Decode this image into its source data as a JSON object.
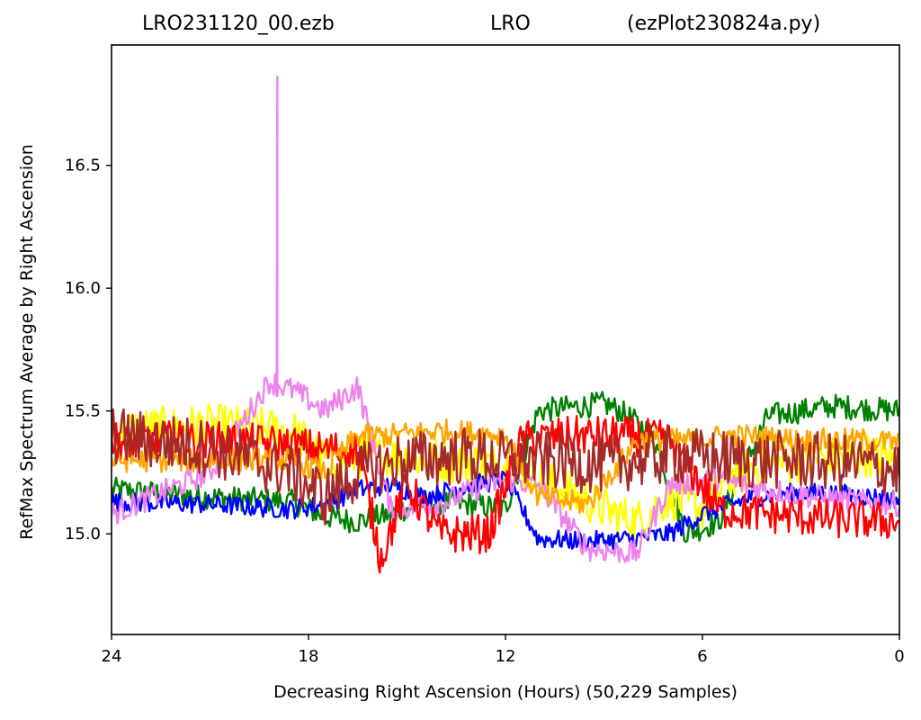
{
  "title": {
    "left": "LRO231120_00.ezb",
    "center": "LRO",
    "right": "(ezPlot230824a.py)"
  },
  "chart_data": {
    "type": "line",
    "xlabel": "Decreasing Right Ascension (Hours) (50,229 Samples)",
    "ylabel": "RefMax Spectrum Average by Right Ascension",
    "xlim": [
      24,
      0
    ],
    "ylim": [
      14.59,
      16.99
    ],
    "x_ticks": [
      "24",
      "18",
      "12",
      "6",
      "0"
    ],
    "y_ticks": [
      "15.0",
      "15.5",
      "16.0",
      "16.5"
    ],
    "grid": false,
    "legend": "none",
    "series": [
      {
        "color": "#008000",
        "x": [
          24,
          21,
          18.5,
          17.5,
          16.5,
          15.5,
          14.5,
          13.0,
          12.0,
          11.0,
          9.0,
          8.5,
          7.5,
          6.5,
          5.5,
          4.0,
          2.0,
          0
        ],
        "values": [
          15.18,
          15.15,
          15.13,
          15.07,
          15.05,
          15.08,
          15.13,
          15.12,
          15.1,
          15.5,
          15.53,
          15.5,
          15.4,
          15.0,
          15.05,
          15.48,
          15.52,
          15.5
        ],
        "noise": 0.05
      },
      {
        "color": "#ffff00",
        "x": [
          24,
          21,
          18.5,
          17.5,
          16,
          14,
          12,
          10.5,
          9,
          8,
          7,
          6,
          5,
          3,
          1,
          0
        ],
        "values": [
          15.42,
          15.44,
          15.42,
          15.3,
          15.32,
          15.3,
          15.28,
          15.2,
          15.1,
          15.05,
          15.15,
          15.1,
          15.25,
          15.3,
          15.32,
          15.3
        ],
        "noise": 0.09
      },
      {
        "color": "#0000ff",
        "x": [
          24,
          21,
          18.5,
          17.5,
          16.5,
          15.5,
          14.5,
          13.0,
          12.0,
          11.0,
          9.5,
          8.0,
          7.0,
          6.0,
          4.5,
          3.0,
          1.5,
          0
        ],
        "values": [
          15.13,
          15.12,
          15.1,
          15.12,
          15.18,
          15.2,
          15.15,
          15.2,
          15.22,
          14.98,
          14.97,
          14.98,
          15.0,
          15.08,
          15.15,
          15.17,
          15.16,
          15.14
        ],
        "noise": 0.04
      },
      {
        "color": "#ee82ee",
        "x": [
          24,
          21,
          19.2,
          18.4,
          17.5,
          16.5,
          15.5,
          14.0,
          13.0,
          12.0,
          11.0,
          9.5,
          8.0,
          7.0,
          5.5,
          4.0,
          2.0,
          0
        ],
        "values": [
          15.08,
          15.25,
          15.62,
          15.58,
          15.5,
          15.6,
          15.1,
          15.12,
          15.18,
          15.22,
          15.2,
          14.94,
          14.92,
          15.2,
          15.22,
          15.18,
          15.14,
          15.12
        ],
        "noise": 0.05,
        "spike": {
          "x": 18.95,
          "value": 16.86
        }
      },
      {
        "color": "#ff0000",
        "x": [
          24,
          21,
          18.5,
          17.5,
          16.5,
          15.8,
          15.0,
          14.0,
          12.5,
          11.5,
          10.0,
          8.5,
          7.0,
          5.5,
          4.0,
          2.0,
          0
        ],
        "values": [
          15.38,
          15.38,
          15.36,
          15.34,
          15.35,
          14.9,
          15.2,
          15.0,
          15.0,
          15.38,
          15.4,
          15.4,
          15.38,
          15.1,
          15.08,
          15.06,
          15.05
        ],
        "noise": 0.08
      },
      {
        "color": "#ffa500",
        "x": [
          24,
          21,
          18.5,
          17.5,
          16.5,
          15.5,
          14.0,
          12.0,
          11.0,
          9.5,
          8.0,
          6.5,
          5.0,
          3.0,
          1.0,
          0
        ],
        "values": [
          15.3,
          15.3,
          15.3,
          15.25,
          15.4,
          15.4,
          15.42,
          15.4,
          15.15,
          15.12,
          15.38,
          15.38,
          15.4,
          15.38,
          15.38,
          15.37
        ],
        "noise": 0.05
      },
      {
        "color": "#a52a2a",
        "x": [
          24,
          21,
          18.5,
          17.5,
          16.5,
          15.0,
          13.0,
          12.0,
          11.0,
          9.0,
          7.0,
          5.0,
          3.0,
          1.0,
          0
        ],
        "values": [
          15.4,
          15.35,
          15.25,
          15.15,
          15.25,
          15.3,
          15.32,
          15.3,
          15.3,
          15.28,
          15.32,
          15.3,
          15.3,
          15.28,
          15.26
        ],
        "noise": 0.12
      }
    ]
  }
}
